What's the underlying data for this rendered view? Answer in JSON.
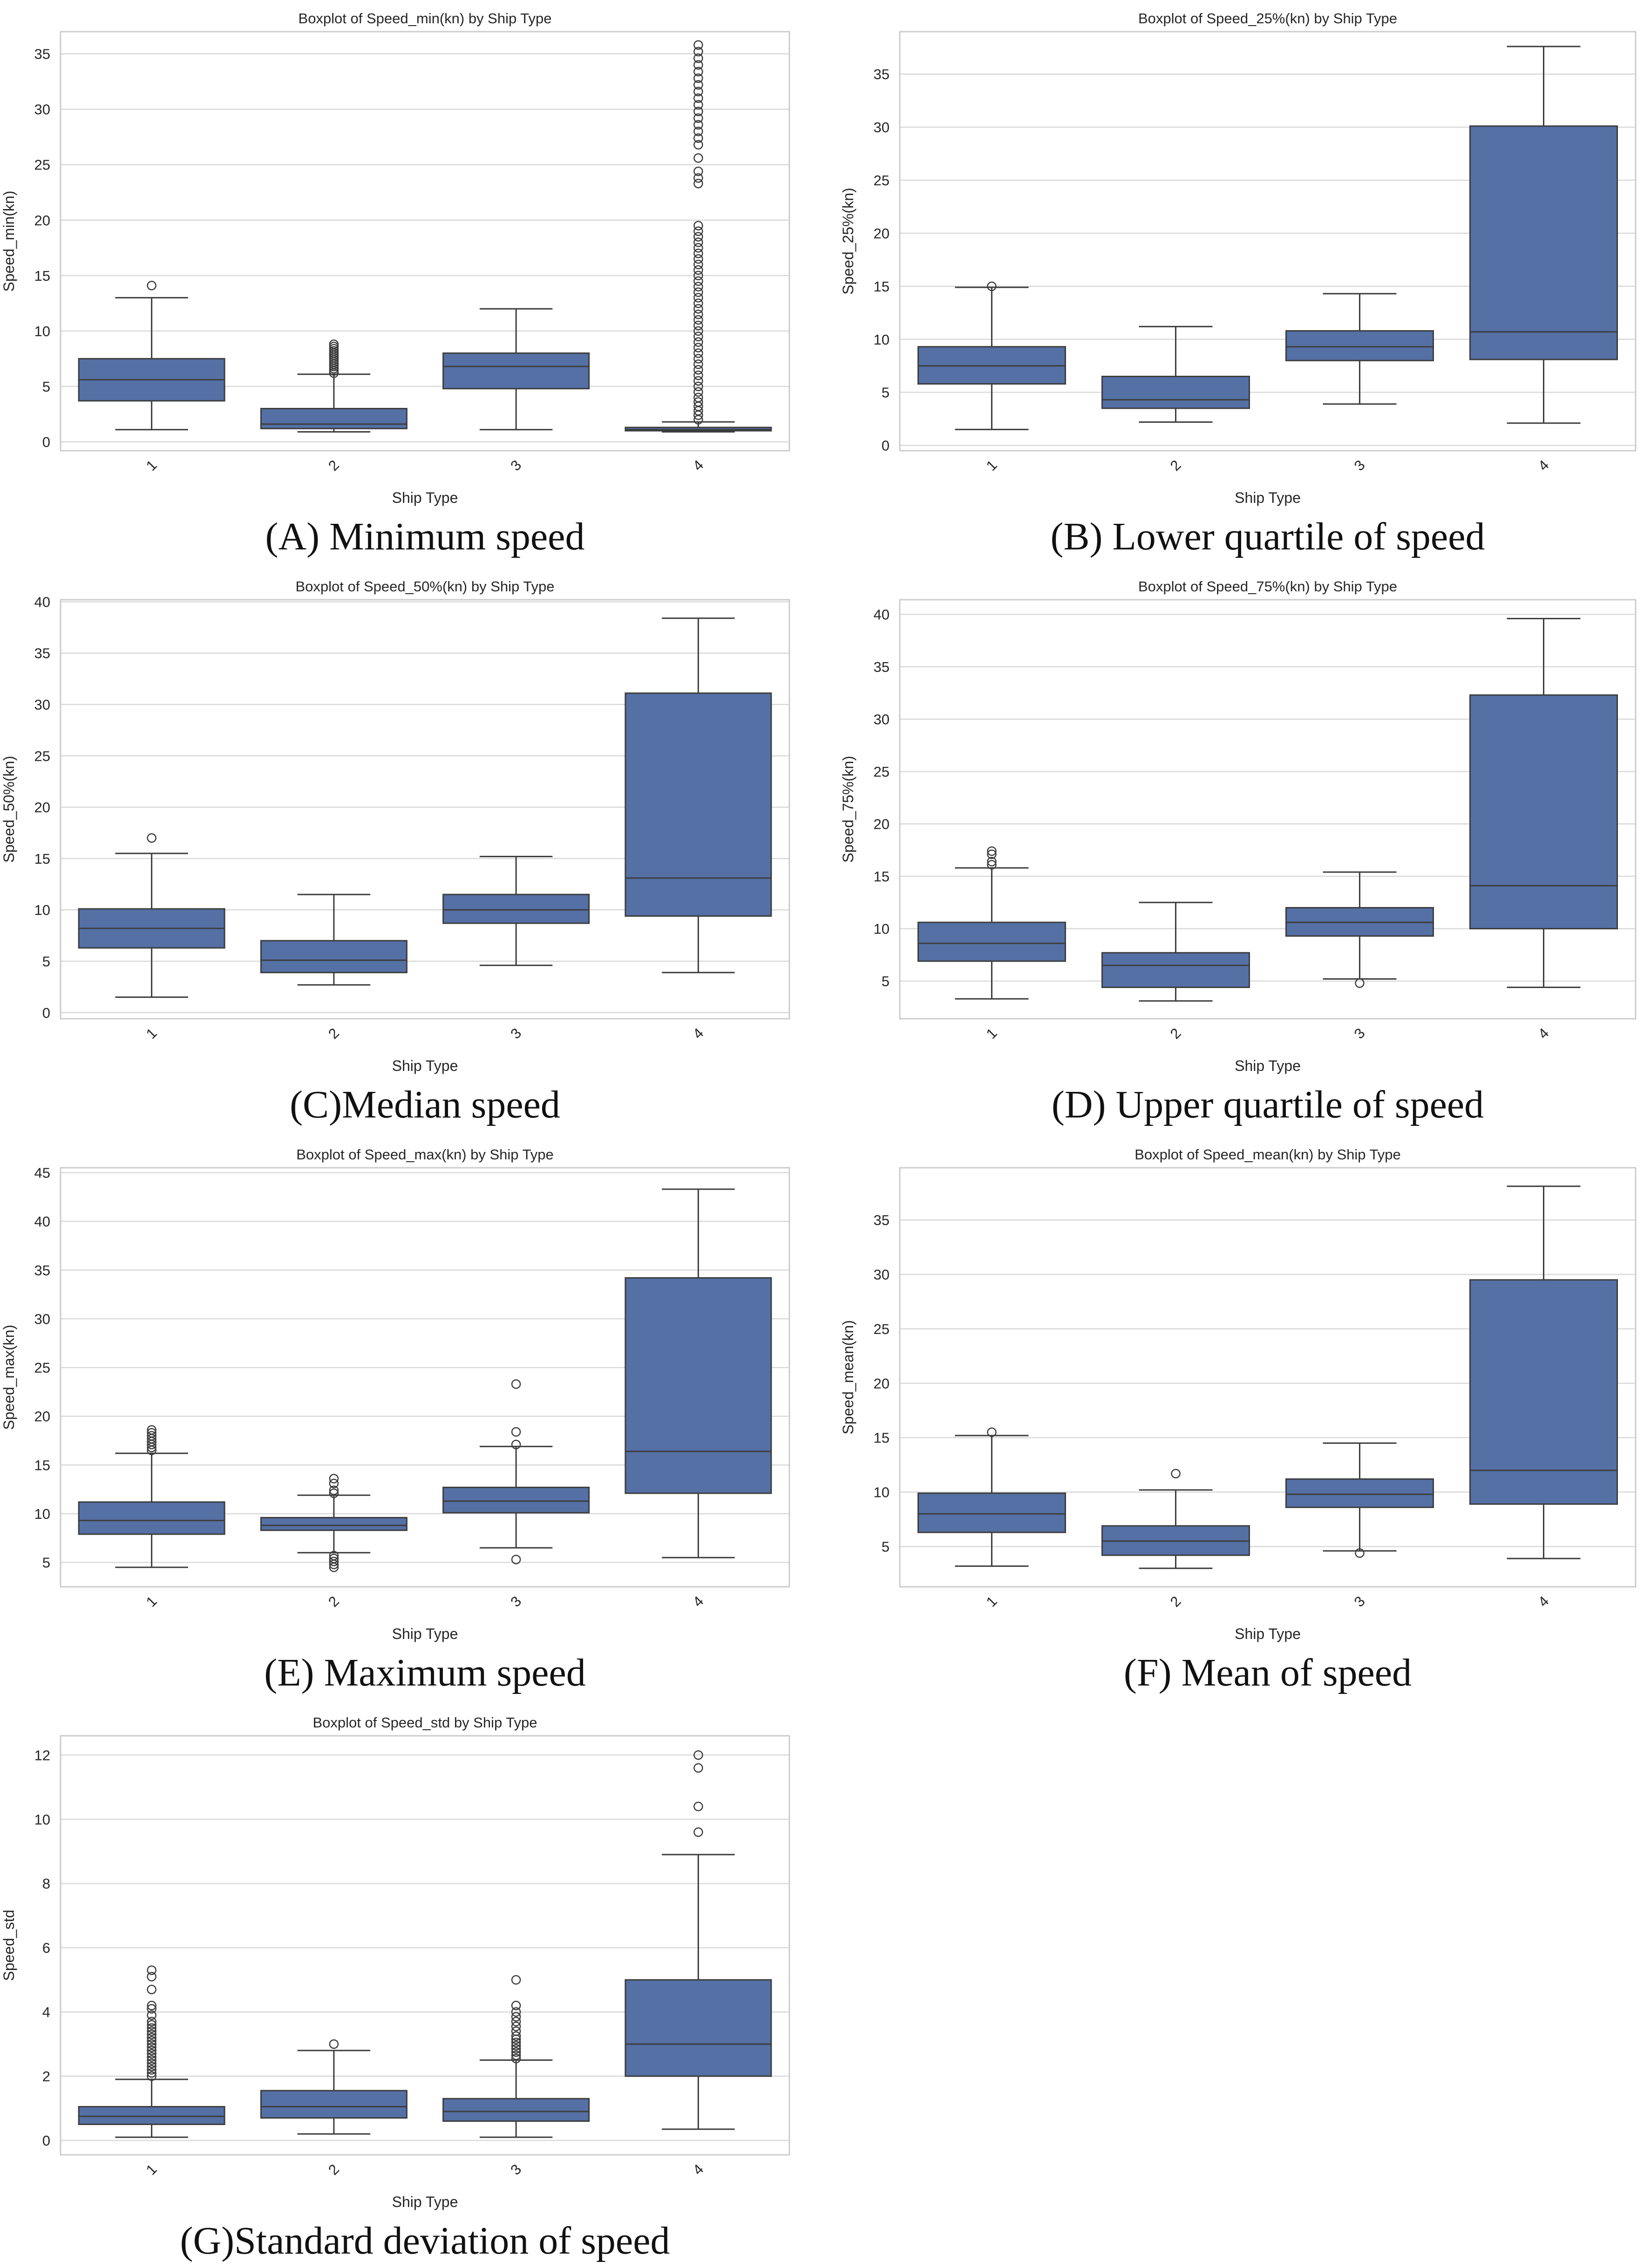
{
  "figure": {
    "box_color": "#5470a5",
    "line_color": "#3d3d3d",
    "grid_color": "#d9d9d9",
    "frame_color": "#cccccc"
  },
  "chart_data": [
    {
      "type": "box",
      "title": "Boxplot of Speed_min(kn) by Ship Type",
      "xlabel": "Ship Type",
      "ylabel": "Speed_min(kn)",
      "caption": "(A) Minimum speed",
      "categories": [
        "1",
        "2",
        "3",
        "4"
      ],
      "ylim": [
        -0.8,
        37
      ],
      "yticks": [
        0,
        5,
        10,
        15,
        20,
        25,
        30,
        35
      ],
      "boxes": [
        {
          "category": "1",
          "whisker_low": 1.1,
          "q1": 3.7,
          "median": 5.6,
          "q3": 7.5,
          "whisker_high": 13.0,
          "outliers": [
            14.1
          ]
        },
        {
          "category": "2",
          "whisker_low": 0.9,
          "q1": 1.2,
          "median": 1.6,
          "q3": 3.0,
          "whisker_high": 6.1,
          "outliers": [
            6.2,
            6.4,
            6.6,
            6.8,
            7.0,
            7.2,
            7.4,
            7.6,
            7.8,
            8.0,
            8.2,
            8.4,
            8.6,
            8.8
          ]
        },
        {
          "category": "3",
          "whisker_low": 1.1,
          "q1": 4.8,
          "median": 6.8,
          "q3": 8.0,
          "whisker_high": 12.0,
          "outliers": []
        },
        {
          "category": "4",
          "whisker_low": 0.9,
          "q1": 1.0,
          "median": 1.1,
          "q3": 1.3,
          "whisker_high": 1.8,
          "outliers": [
            2,
            2.4,
            2.8,
            3.2,
            3.6,
            4,
            4.5,
            5,
            5.5,
            6,
            6.5,
            7,
            7.5,
            8,
            8.5,
            9,
            9.5,
            10,
            10.5,
            11,
            11.5,
            12,
            12.5,
            13,
            13.5,
            14,
            14.5,
            15,
            15.5,
            16,
            16.5,
            17,
            17.5,
            18,
            18.5,
            19,
            19.5,
            23.3,
            23.8,
            24.4,
            25.6,
            26.8,
            27.4,
            28,
            28.6,
            29.2,
            29.8,
            30.4,
            31,
            31.6,
            32.2,
            32.8,
            33.4,
            34,
            34.6,
            35.2,
            35.8
          ]
        }
      ]
    },
    {
      "type": "box",
      "title": "Boxplot of Speed_25%(kn) by Ship Type",
      "xlabel": "Ship Type",
      "ylabel": "Speed_25%(kn)",
      "caption": "(B) Lower quartile of speed",
      "categories": [
        "1",
        "2",
        "3",
        "4"
      ],
      "ylim": [
        -0.5,
        39
      ],
      "yticks": [
        0,
        5,
        10,
        15,
        20,
        25,
        30,
        35
      ],
      "boxes": [
        {
          "category": "1",
          "whisker_low": 1.5,
          "q1": 5.8,
          "median": 7.5,
          "q3": 9.3,
          "whisker_high": 14.9,
          "outliers": [
            15.0
          ]
        },
        {
          "category": "2",
          "whisker_low": 2.2,
          "q1": 3.5,
          "median": 4.3,
          "q3": 6.5,
          "whisker_high": 11.2,
          "outliers": []
        },
        {
          "category": "3",
          "whisker_low": 3.9,
          "q1": 8.0,
          "median": 9.3,
          "q3": 10.8,
          "whisker_high": 14.3,
          "outliers": []
        },
        {
          "category": "4",
          "whisker_low": 2.1,
          "q1": 8.1,
          "median": 10.7,
          "q3": 30.1,
          "whisker_high": 37.6,
          "outliers": []
        }
      ]
    },
    {
      "type": "box",
      "title": "Boxplot of Speed_50%(kn) by Ship Type",
      "xlabel": "Ship Type",
      "ylabel": "Speed_50%(kn)",
      "caption": "(C)Median speed",
      "categories": [
        "1",
        "2",
        "3",
        "4"
      ],
      "ylim": [
        -0.6,
        40.2
      ],
      "yticks": [
        0,
        5,
        10,
        15,
        20,
        25,
        30,
        35,
        40
      ],
      "boxes": [
        {
          "category": "1",
          "whisker_low": 1.5,
          "q1": 6.3,
          "median": 8.2,
          "q3": 10.1,
          "whisker_high": 15.5,
          "outliers": [
            17.0
          ]
        },
        {
          "category": "2",
          "whisker_low": 2.7,
          "q1": 3.9,
          "median": 5.1,
          "q3": 7.0,
          "whisker_high": 11.5,
          "outliers": []
        },
        {
          "category": "3",
          "whisker_low": 4.6,
          "q1": 8.7,
          "median": 10.0,
          "q3": 11.5,
          "whisker_high": 15.2,
          "outliers": []
        },
        {
          "category": "4",
          "whisker_low": 3.9,
          "q1": 9.4,
          "median": 13.1,
          "q3": 31.1,
          "whisker_high": 38.4,
          "outliers": []
        }
      ]
    },
    {
      "type": "box",
      "title": "Boxplot of Speed_75%(kn) by Ship Type",
      "xlabel": "Ship Type",
      "ylabel": "Speed_75%(kn)",
      "caption": "(D) Upper quartile of speed",
      "categories": [
        "1",
        "2",
        "3",
        "4"
      ],
      "ylim": [
        1.4,
        41.4
      ],
      "yticks": [
        5,
        10,
        15,
        20,
        25,
        30,
        35,
        40
      ],
      "boxes": [
        {
          "category": "1",
          "whisker_low": 3.3,
          "q1": 6.9,
          "median": 8.6,
          "q3": 10.6,
          "whisker_high": 15.8,
          "outliers": [
            16.1,
            16.4,
            17.1,
            17.4
          ]
        },
        {
          "category": "2",
          "whisker_low": 3.1,
          "q1": 4.4,
          "median": 6.5,
          "q3": 7.7,
          "whisker_high": 12.5,
          "outliers": []
        },
        {
          "category": "3",
          "whisker_low": 5.2,
          "q1": 9.3,
          "median": 10.6,
          "q3": 12.0,
          "whisker_high": 15.4,
          "outliers": [
            4.8
          ]
        },
        {
          "category": "4",
          "whisker_low": 4.4,
          "q1": 10.0,
          "median": 14.1,
          "q3": 32.3,
          "whisker_high": 39.6,
          "outliers": []
        }
      ]
    },
    {
      "type": "box",
      "title": "Boxplot of Speed_max(kn) by Ship Type",
      "xlabel": "Ship Type",
      "ylabel": "Speed_max(kn)",
      "caption": "(E) Maximum speed",
      "categories": [
        "1",
        "2",
        "3",
        "4"
      ],
      "ylim": [
        2.5,
        45.5
      ],
      "yticks": [
        5,
        10,
        15,
        20,
        25,
        30,
        35,
        40,
        45
      ],
      "boxes": [
        {
          "category": "1",
          "whisker_low": 4.5,
          "q1": 7.9,
          "median": 9.3,
          "q3": 11.2,
          "whisker_high": 16.2,
          "outliers": [
            16.5,
            16.8,
            17.1,
            17.4,
            17.7,
            18.0,
            18.3,
            18.6
          ]
        },
        {
          "category": "2",
          "whisker_low": 6.0,
          "q1": 8.3,
          "median": 8.8,
          "q3": 9.6,
          "whisker_high": 11.9,
          "outliers": [
            4.5,
            4.8,
            5.1,
            5.4,
            5.7,
            12.1,
            12.4,
            13.1,
            13.6
          ]
        },
        {
          "category": "3",
          "whisker_low": 6.5,
          "q1": 10.1,
          "median": 11.3,
          "q3": 12.7,
          "whisker_high": 16.9,
          "outliers": [
            5.3,
            17.1,
            18.4,
            23.3
          ]
        },
        {
          "category": "4",
          "whisker_low": 5.5,
          "q1": 12.1,
          "median": 16.4,
          "q3": 34.2,
          "whisker_high": 43.3,
          "outliers": []
        }
      ]
    },
    {
      "type": "box",
      "title": "Boxplot of Speed_mean(kn) by Ship Type",
      "xlabel": "Ship Type",
      "ylabel": "Speed_mean(kn)",
      "caption": "(F) Mean of speed",
      "categories": [
        "1",
        "2",
        "3",
        "4"
      ],
      "ylim": [
        1.3,
        39.8
      ],
      "yticks": [
        5,
        10,
        15,
        20,
        25,
        30,
        35
      ],
      "boxes": [
        {
          "category": "1",
          "whisker_low": 3.2,
          "q1": 6.3,
          "median": 8.0,
          "q3": 9.9,
          "whisker_high": 15.2,
          "outliers": [
            15.5
          ]
        },
        {
          "category": "2",
          "whisker_low": 3.0,
          "q1": 4.2,
          "median": 5.5,
          "q3": 6.9,
          "whisker_high": 10.2,
          "outliers": [
            11.7
          ]
        },
        {
          "category": "3",
          "whisker_low": 4.6,
          "q1": 8.6,
          "median": 9.8,
          "q3": 11.2,
          "whisker_high": 14.5,
          "outliers": [
            4.4
          ]
        },
        {
          "category": "4",
          "whisker_low": 3.9,
          "q1": 8.9,
          "median": 12.0,
          "q3": 29.5,
          "whisker_high": 38.1,
          "outliers": []
        }
      ]
    },
    {
      "type": "box",
      "title": "Boxplot of Speed_std by Ship Type",
      "xlabel": "Ship Type",
      "ylabel": "Speed_std",
      "caption": "(G)Standard deviation of speed",
      "categories": [
        "1",
        "2",
        "3",
        "4"
      ],
      "ylim": [
        -0.45,
        12.6
      ],
      "yticks": [
        0,
        2,
        4,
        6,
        8,
        10,
        12
      ],
      "boxes": [
        {
          "category": "1",
          "whisker_low": 0.1,
          "q1": 0.5,
          "median": 0.75,
          "q3": 1.05,
          "whisker_high": 1.9,
          "outliers": [
            2.0,
            2.1,
            2.2,
            2.3,
            2.4,
            2.5,
            2.6,
            2.7,
            2.8,
            2.9,
            3.0,
            3.1,
            3.2,
            3.3,
            3.4,
            3.5,
            3.6,
            3.7,
            3.9,
            4.1,
            4.2,
            4.7,
            5.1,
            5.3
          ]
        },
        {
          "category": "2",
          "whisker_low": 0.2,
          "q1": 0.7,
          "median": 1.05,
          "q3": 1.55,
          "whisker_high": 2.8,
          "outliers": [
            3.0
          ]
        },
        {
          "category": "3",
          "whisker_low": 0.1,
          "q1": 0.6,
          "median": 0.9,
          "q3": 1.3,
          "whisker_high": 2.5,
          "outliers": [
            2.55,
            2.65,
            2.75,
            2.85,
            2.95,
            3.05,
            3.15,
            3.25,
            3.4,
            3.55,
            3.7,
            3.85,
            4.0,
            4.2,
            5.0
          ]
        },
        {
          "category": "4",
          "whisker_low": 0.35,
          "q1": 2.0,
          "median": 3.0,
          "q3": 5.0,
          "whisker_high": 8.9,
          "outliers": [
            9.6,
            10.4,
            11.6,
            12.0
          ]
        }
      ]
    }
  ]
}
